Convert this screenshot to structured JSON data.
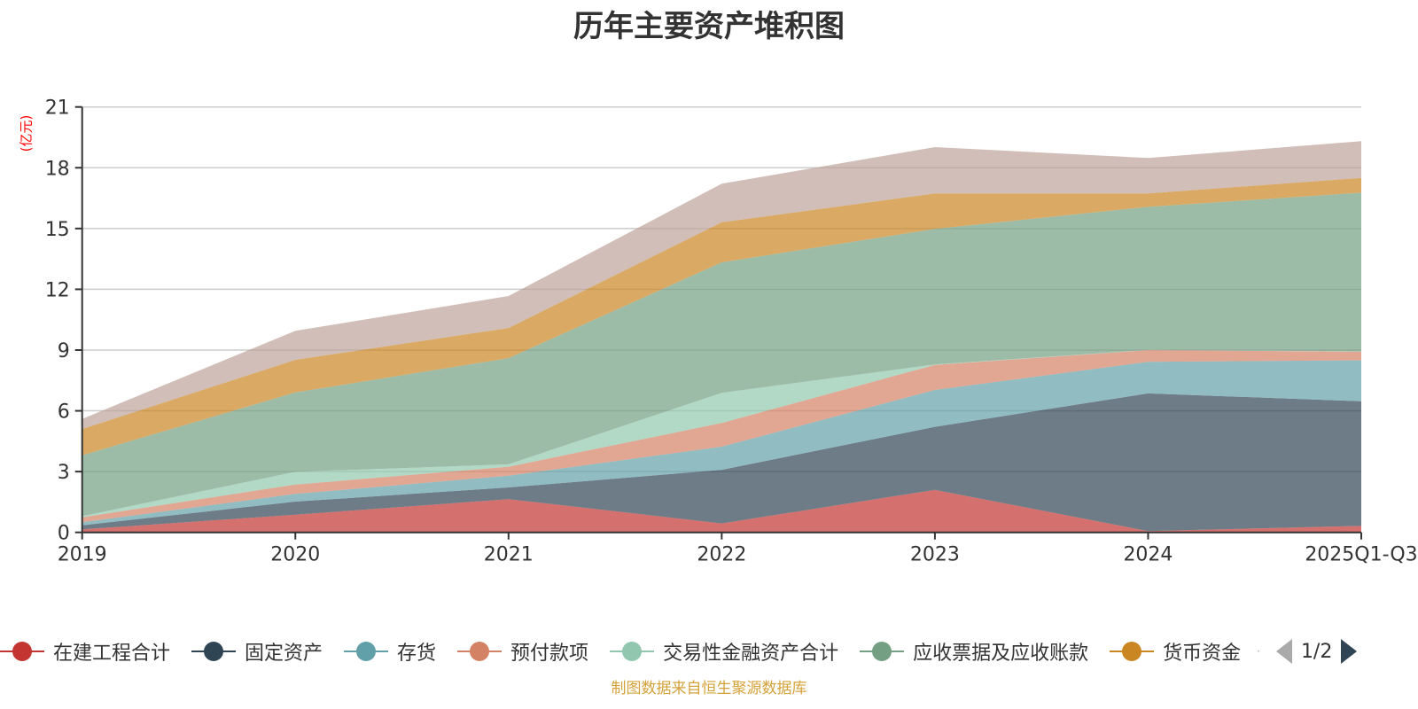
{
  "title": "历年主要资产堆积图",
  "footer": "制图数据来自恒生聚源数据库",
  "legend_pager": {
    "text": "1/2"
  },
  "chart_data": {
    "type": "area",
    "stacked": true,
    "title": "历年主要资产堆积图",
    "ylabel": "(亿元)",
    "xlabel": "",
    "categories": [
      "2019",
      "2020",
      "2021",
      "2022",
      "2023",
      "2024",
      "2025Q1-Q3"
    ],
    "ylim": [
      0,
      21
    ],
    "yticks": [
      0,
      3,
      6,
      9,
      12,
      15,
      18,
      21
    ],
    "grid": true,
    "legend_position": "bottom",
    "series": [
      {
        "name": "在建工程合计",
        "color": "#c23531",
        "values": [
          0.15,
          0.87,
          1.64,
          0.44,
          2.1,
          0.06,
          0.32
        ]
      },
      {
        "name": "固定资产",
        "color": "#2f4554",
        "values": [
          0.2,
          0.65,
          0.58,
          2.65,
          3.11,
          6.8,
          6.15
        ]
      },
      {
        "name": "存货",
        "color": "#61a0a8",
        "values": [
          0.15,
          0.38,
          0.58,
          1.14,
          1.82,
          1.56,
          2.02
        ]
      },
      {
        "name": "预付款项",
        "color": "#d48265",
        "values": [
          0.25,
          0.46,
          0.44,
          1.17,
          1.24,
          0.58,
          0.43
        ]
      },
      {
        "name": "交易性金融资产合计",
        "color": "#91c7ae",
        "values": [
          0.05,
          0.63,
          0.12,
          1.49,
          0.02,
          0.01,
          0.01
        ]
      },
      {
        "name": "应收票据及应收账款",
        "color": "#749f83",
        "values": [
          3.0,
          3.92,
          5.24,
          6.44,
          6.69,
          7.06,
          7.84
        ]
      },
      {
        "name": "货币资金",
        "color": "#ca8622",
        "values": [
          1.3,
          1.61,
          1.49,
          1.98,
          1.75,
          0.66,
          0.73
        ]
      },
      {
        "name": "",
        "color": "#bda29a",
        "values": [
          0.5,
          1.43,
          1.58,
          1.9,
          2.29,
          1.75,
          1.81
        ]
      }
    ],
    "legend_visible_count": 7
  }
}
